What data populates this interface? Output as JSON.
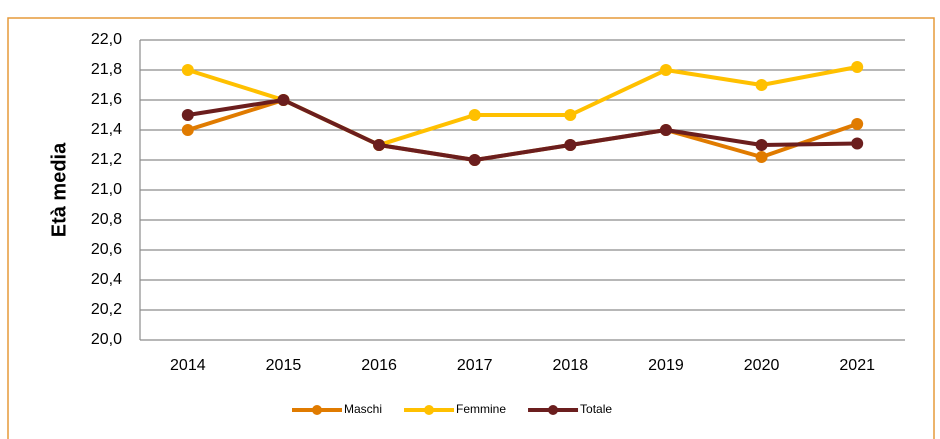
{
  "chart_data": {
    "type": "line",
    "y_label": "Età media",
    "categories": [
      "2014",
      "2015",
      "2016",
      "2017",
      "2018",
      "2019",
      "2020",
      "2021"
    ],
    "series": [
      {
        "name": "Maschi",
        "color": "#e07b00",
        "values": [
          21.4,
          21.6,
          21.3,
          21.2,
          21.3,
          21.4,
          21.22,
          21.44
        ]
      },
      {
        "name": "Femmine",
        "color": "#ffc000",
        "values": [
          21.8,
          21.6,
          21.3,
          21.5,
          21.5,
          21.8,
          21.7,
          21.82
        ]
      },
      {
        "name": "Totale",
        "color": "#6b1e1e",
        "values": [
          21.5,
          21.6,
          21.3,
          21.2,
          21.3,
          21.4,
          21.3,
          21.31
        ]
      }
    ],
    "ylim": [
      20.0,
      22.0
    ],
    "yticks": [
      {
        "value": 20.0,
        "label": "20,0"
      },
      {
        "value": 20.2,
        "label": "20,2"
      },
      {
        "value": 20.4,
        "label": "20,4"
      },
      {
        "value": 20.6,
        "label": "20,6"
      },
      {
        "value": 20.8,
        "label": "20,8"
      },
      {
        "value": 21.0,
        "label": "21,0"
      },
      {
        "value": 21.2,
        "label": "21,2"
      },
      {
        "value": 21.4,
        "label": "21,4"
      },
      {
        "value": 21.6,
        "label": "21,6"
      },
      {
        "value": 21.8,
        "label": "21,8"
      },
      {
        "value": 22.0,
        "label": "22,0"
      }
    ],
    "grid": true,
    "legend": "bottom"
  }
}
